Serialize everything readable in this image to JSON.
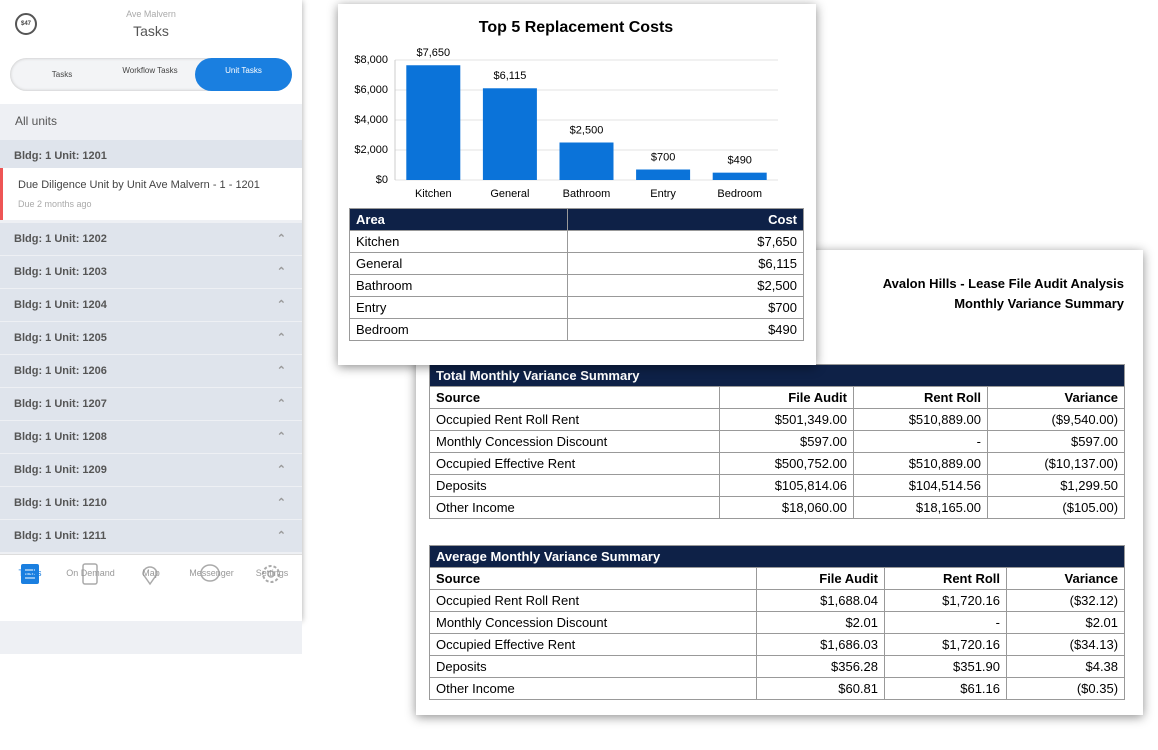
{
  "phone": {
    "badge": "$47",
    "subtitle": "Ave Malvern",
    "title": "Tasks",
    "tabs": [
      "Tasks",
      "Workflow Tasks",
      "Unit Tasks"
    ],
    "filter": "All units",
    "units": [
      "Bldg: 1 Unit: 1201",
      "Bldg: 1 Unit: 1202",
      "Bldg: 1 Unit: 1203",
      "Bldg: 1 Unit: 1204",
      "Bldg: 1 Unit: 1205",
      "Bldg: 1 Unit: 1206",
      "Bldg: 1 Unit: 1207",
      "Bldg: 1 Unit: 1208",
      "Bldg: 1 Unit: 1209",
      "Bldg: 1 Unit: 1210",
      "Bldg: 1 Unit: 1211"
    ],
    "task": {
      "title": "Due Diligence Unit by Unit Ave Malvern - 1 - 1201",
      "due": "Due 2 months ago"
    },
    "nav": [
      "Tasks",
      "On Demand",
      "Map",
      "Messenger",
      "Settings"
    ]
  },
  "chart_data": {
    "type": "bar",
    "title": "Top 5 Replacement Costs",
    "categories": [
      "Kitchen",
      "General",
      "Bathroom",
      "Entry",
      "Bedroom"
    ],
    "values": [
      7650,
      6115,
      2500,
      700,
      490
    ],
    "value_labels": [
      "$7,650",
      "$6,115",
      "$2,500",
      "$700",
      "$490"
    ],
    "color": "#0b73d9",
    "ylim": [
      0,
      8000
    ],
    "yticks": [
      {
        "value": 0,
        "label": "$0"
      },
      {
        "value": 2000,
        "label": "$2,000"
      },
      {
        "value": 4000,
        "label": "$4,000"
      },
      {
        "value": 6000,
        "label": "$6,000"
      },
      {
        "value": 8000,
        "label": "$8,000"
      }
    ],
    "grid": true
  },
  "cost_table": {
    "headers": [
      "Area",
      "Cost"
    ],
    "rows": [
      [
        "Kitchen",
        "$7,650"
      ],
      [
        "General",
        "$6,115"
      ],
      [
        "Bathroom",
        "$2,500"
      ],
      [
        "Entry",
        "$700"
      ],
      [
        "Bedroom",
        "$490"
      ]
    ]
  },
  "report": {
    "title": "Avalon Hills - Lease File Audit Analysis",
    "subtitle": "Monthly Variance Summary",
    "tables": [
      {
        "caption": "Total Monthly Variance Summary",
        "headers": [
          "Source",
          "File Audit",
          "Rent Roll",
          "Variance"
        ],
        "rows": [
          [
            "Occupied Rent Roll Rent",
            "$501,349.00",
            "$510,889.00",
            "($9,540.00)"
          ],
          [
            "Monthly Concession Discount",
            "$597.00",
            "-",
            "$597.00"
          ],
          [
            "Occupied Effective Rent",
            "$500,752.00",
            "$510,889.00",
            "($10,137.00)"
          ],
          [
            "Deposits",
            "$105,814.06",
            "$104,514.56",
            "$1,299.50"
          ],
          [
            "Other Income",
            "$18,060.00",
            "$18,165.00",
            "($105.00)"
          ]
        ]
      },
      {
        "caption": "Average Monthly Variance Summary",
        "headers": [
          "Source",
          "File Audit",
          "Rent Roll",
          "Variance"
        ],
        "rows": [
          [
            "Occupied Rent Roll Rent",
            "$1,688.04",
            "$1,720.16",
            "($32.12)"
          ],
          [
            "Monthly Concession Discount",
            "$2.01",
            "-",
            "$2.01"
          ],
          [
            "Occupied Effective Rent",
            "$1,686.03",
            "$1,720.16",
            "($34.13)"
          ],
          [
            "Deposits",
            "$356.28",
            "$351.90",
            "$4.38"
          ],
          [
            "Other Income",
            "$60.81",
            "$61.16",
            "($0.35)"
          ]
        ]
      }
    ]
  }
}
